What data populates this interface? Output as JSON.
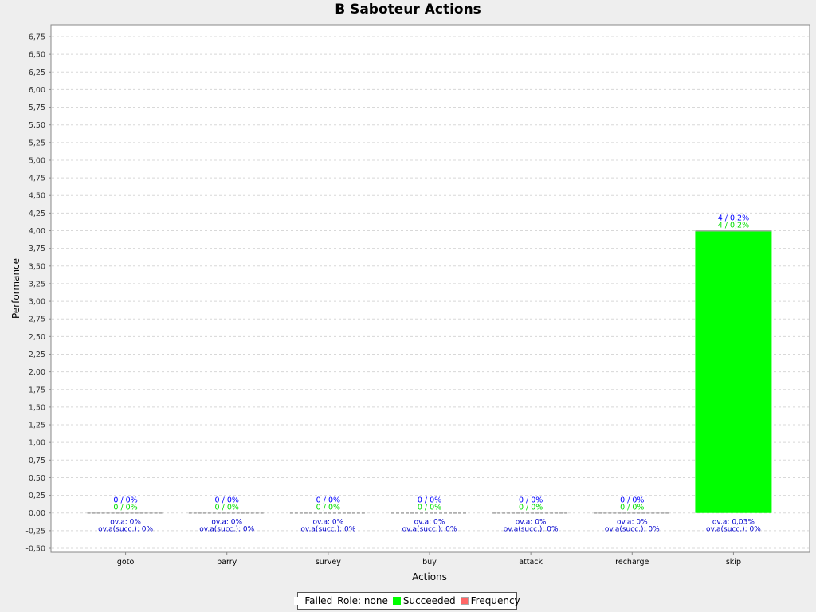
{
  "chart_data": {
    "type": "bar",
    "title": "B Saboteur Actions",
    "xlabel": "Actions",
    "ylabel": "Performance",
    "categories": [
      "goto",
      "parry",
      "survey",
      "buy",
      "attack",
      "recharge",
      "skip"
    ],
    "ylim": [
      -0.5,
      6.75
    ],
    "yticks": [
      "-0,50",
      "-0,25",
      "0,00",
      "0,25",
      "0,50",
      "0,75",
      "1,00",
      "1,25",
      "1,50",
      "1,75",
      "2,00",
      "2,25",
      "2,50",
      "2,75",
      "3,00",
      "3,25",
      "3,50",
      "3,75",
      "4,00",
      "4,25",
      "4,50",
      "4,75",
      "5,00",
      "5,25",
      "5,50",
      "5,75",
      "6,00",
      "6,25",
      "6,50",
      "6,75"
    ],
    "ytick_values": [
      -0.5,
      -0.25,
      0,
      0.25,
      0.5,
      0.75,
      1,
      1.25,
      1.5,
      1.75,
      2,
      2.25,
      2.5,
      2.75,
      3,
      3.25,
      3.5,
      3.75,
      4,
      4.25,
      4.5,
      4.75,
      5,
      5.25,
      5.5,
      5.75,
      6,
      6.25,
      6.5,
      6.75
    ],
    "grid": true,
    "legend_position": "bottom",
    "series": [
      {
        "name": "Failed_Role: none",
        "color": "#ffffff",
        "values": [
          0,
          0,
          0,
          0,
          0,
          0,
          0
        ]
      },
      {
        "name": "Succeeded",
        "color": "#00ff00",
        "values": [
          0,
          0,
          0,
          0,
          0,
          0,
          4
        ],
        "labels": [
          "0 / 0%",
          "0 / 0%",
          "0 / 0%",
          "0 / 0%",
          "0 / 0%",
          "0 / 0%",
          "4 / 0,2%"
        ]
      },
      {
        "name": "Frequency",
        "color": "#ff6666",
        "values": [
          0,
          0,
          0,
          0,
          0,
          0,
          4
        ],
        "labels": [
          "0 / 0%",
          "0 / 0%",
          "0 / 0%",
          "0 / 0%",
          "0 / 0%",
          "0 / 0%",
          "4 / 0,2%"
        ]
      }
    ],
    "annotations_overall": [
      "ov.a: 0%",
      "ov.a: 0%",
      "ov.a: 0%",
      "ov.a: 0%",
      "ov.a: 0%",
      "ov.a: 0%",
      "ov.a: 0,03%"
    ],
    "annotations_overall_succ": [
      "ov.a(succ.): 0%",
      "ov.a(succ.): 0%",
      "ov.a(succ.): 0%",
      "ov.a(succ.): 0%",
      "ov.a(succ.): 0%",
      "ov.a(succ.): 0%",
      "ov.a(succ.): 0%"
    ],
    "frequency_label_color": "#0000ff",
    "succeeded_label_color": "#00dd00",
    "annotation_color": "#0000cc"
  }
}
